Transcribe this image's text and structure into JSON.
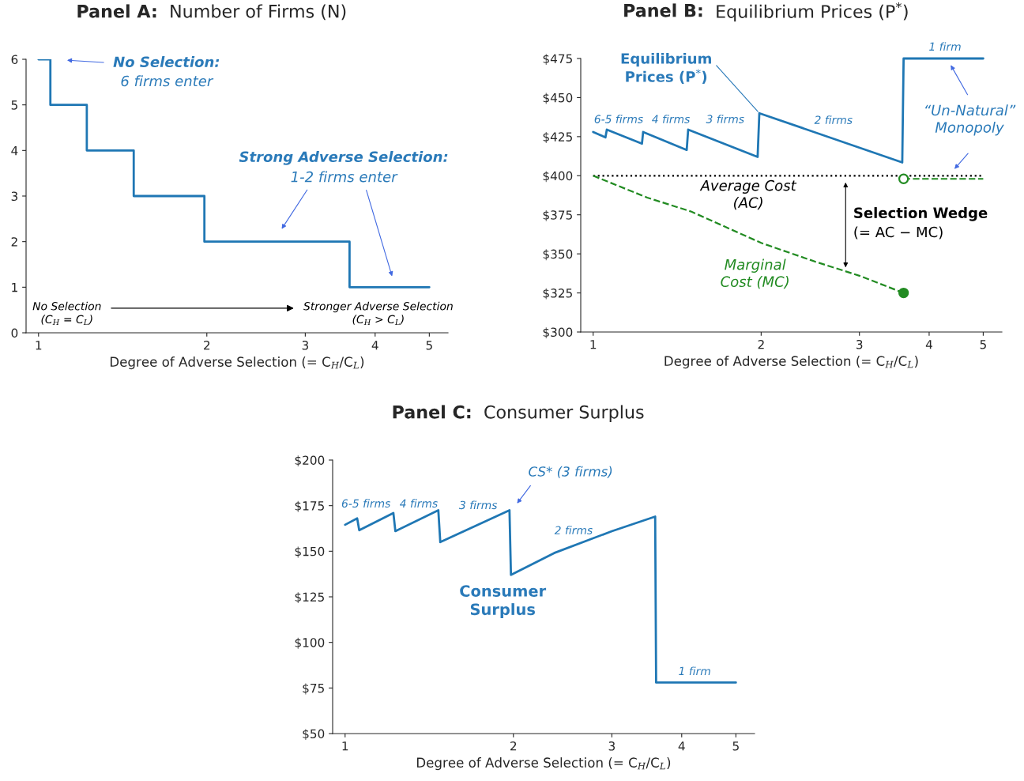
{
  "chart_data": [
    {
      "type": "step",
      "title": "Panel A: Number of Firms (N)",
      "xlabel": "Degree of Adverse Selection (= C$_{H}$/C$_{L}$)",
      "log": "x",
      "xlim": [
        0.95,
        5.4
      ],
      "xticks": [
        1,
        2,
        3,
        4,
        5
      ],
      "ylim": [
        0,
        6
      ],
      "yticks": [
        0,
        1,
        2,
        3,
        4,
        5,
        6
      ],
      "series": [
        {
          "color": "#1f77b4",
          "x": [
            1,
            1.05,
            1.22,
            1.48,
            1.98,
            3.6,
            5
          ],
          "values": [
            6,
            5,
            4,
            3,
            2,
            1,
            1
          ]
        }
      ],
      "annotations": [
        "No Selection:",
        "6 firms enter",
        "Strong Adverse Selection:",
        "1-2 firms enter",
        "No Selection\n(C$_{H}$ = C$_{L}$)",
        "Stronger Adverse Selection\n(C$_{H}$ > C$_{L}$)"
      ]
    },
    {
      "type": "line",
      "title": "Panel B: Equilibrium Prices (P$^{*}$)",
      "xlabel": "Degree of Adverse Selection (= C$_{H}$/C$_{L}$)",
      "log": "x",
      "xlim": [
        0.95,
        5.4
      ],
      "xticks": [
        1,
        2,
        3,
        4,
        5
      ],
      "ylim": [
        300,
        475
      ],
      "yticks": [
        {
          "value": 300,
          "label": "$300"
        },
        {
          "value": 325,
          "label": "$325"
        },
        {
          "value": 350,
          "label": "$350"
        },
        {
          "value": 375,
          "label": "$375"
        },
        {
          "value": 400,
          "label": "$400"
        },
        {
          "value": 425,
          "label": "$425"
        },
        {
          "value": 450,
          "label": "$450"
        },
        {
          "value": 475,
          "label": "$475"
        }
      ],
      "series": [
        {
          "color": "#1f77b4",
          "x": [
            1,
            1.052,
            1.058,
            1.223,
            1.229,
            1.471,
            1.48,
            1.971,
            1.985,
            3.58,
            3.6,
            5
          ],
          "values": [
            428,
            424.5,
            429.5,
            420.5,
            428,
            416.5,
            429.5,
            412,
            440,
            408.5,
            475,
            475
          ]
        },
        {
          "color": "#000000",
          "line_style": "dotted",
          "x": [
            1,
            5
          ],
          "values": [
            400,
            400
          ]
        },
        {
          "color": "#228b22",
          "line_style": "dashed",
          "x": [
            1,
            1.25,
            1.5,
            2,
            2.5,
            3,
            3.6
          ],
          "values": [
            400,
            386,
            377,
            357,
            345,
            336,
            325
          ]
        },
        {
          "color": "#228b22",
          "line_style": "dashed",
          "marker": "circle",
          "x": [
            3.6,
            5
          ],
          "values": [
            398,
            398
          ]
        },
        {
          "type": "scatter",
          "marker": "circle",
          "color": "#228b22",
          "x": [
            3.6
          ],
          "values": [
            325
          ]
        }
      ],
      "annotations": [
        {
          "text": "Equilibrium\nPrices (P$^{*}$)",
          "x": 1.985,
          "y": 440
        },
        "6-5 firms",
        "4 firms",
        "3 firms",
        "2 firms",
        "1 firm",
        "“Un-Natural”\nMonopoly",
        "Average Cost\n(AC)",
        "Selection Wedge",
        "(= AC − MC)",
        "Marginal\nCost (MC)"
      ]
    },
    {
      "type": "line",
      "title": "Panel C: Consumer Surplus",
      "xlabel": "Degree of Adverse Selection (= C$_{H}$/C$_{L}$)",
      "log": "x",
      "xlim": [
        0.95,
        5.4
      ],
      "xticks": [
        1,
        2,
        3,
        4,
        5
      ],
      "ylim": [
        50,
        200
      ],
      "yticks": [
        {
          "value": 50,
          "label": "$50"
        },
        {
          "value": 75,
          "label": "$75"
        },
        {
          "value": 100,
          "label": "$100"
        },
        {
          "value": 125,
          "label": "$125"
        },
        {
          "value": 150,
          "label": "$150"
        },
        {
          "value": 175,
          "label": "$175"
        },
        {
          "value": 200,
          "label": "$200"
        }
      ],
      "series": [
        {
          "color": "#1f77b4",
          "x": [
            1,
            1.051,
            1.06,
            1.22,
            1.23,
            1.468,
            1.48,
            1.968,
            1.98,
            2.365,
            3,
            3.586,
            3.6,
            5
          ],
          "values": [
            164.5,
            168,
            161.5,
            171,
            161,
            172.5,
            155,
            172.5,
            137,
            149,
            161,
            169,
            78,
            78
          ]
        }
      ],
      "annotations": [
        "CS* (3 firms)",
        "6-5 firms",
        "4 firms",
        "3 firms",
        "2 firms",
        "1 firm",
        "Consumer\nSurplus"
      ]
    }
  ]
}
